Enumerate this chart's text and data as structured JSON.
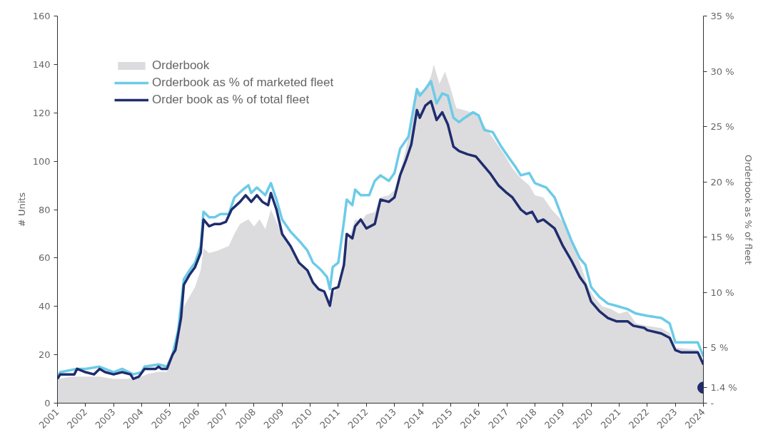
{
  "chart_data": {
    "type": "line",
    "ylabel": "# Units",
    "y2label": "Orderbook as % of fleet",
    "xlim": [
      2001,
      2024
    ],
    "xticks": [
      2001,
      2002,
      2003,
      2004,
      2005,
      2006,
      2007,
      2008,
      2009,
      2010,
      2011,
      2012,
      2013,
      2014,
      2015,
      2016,
      2017,
      2018,
      2019,
      2020,
      2021,
      2022,
      2023,
      2024
    ],
    "ylim": [
      0,
      160
    ],
    "yticks": [
      0,
      20,
      40,
      60,
      80,
      100,
      120,
      140,
      160
    ],
    "y2lim": [
      0,
      35
    ],
    "y2ticks": [
      {
        "value": 0,
        "label": "-"
      },
      {
        "value": 5,
        "label": "5 %"
      },
      {
        "value": 10,
        "label": "10 %"
      },
      {
        "value": 15,
        "label": "15 %"
      },
      {
        "value": 20,
        "label": "20 %"
      },
      {
        "value": 25,
        "label": "25 %"
      },
      {
        "value": 30,
        "label": "30 %"
      },
      {
        "value": 35,
        "label": "35 %"
      }
    ],
    "grid": false,
    "legend": "top left",
    "line_style": "solid",
    "series": [
      {
        "name": "Orderbook",
        "type": "area",
        "color": "#dcdcde",
        "x": [
          2001,
          2001.5,
          2002,
          2002.5,
          2003,
          2003.5,
          2004,
          2004.2,
          2004.6,
          2004.9,
          2005.1,
          2005.3,
          2005.5,
          2005.7,
          2005.9,
          2006.1,
          2006.2,
          2006.4,
          2006.7,
          2006.9,
          2007.1,
          2007.3,
          2007.5,
          2007.8,
          2008.0,
          2008.2,
          2008.4,
          2008.6,
          2008.8,
          2009.0,
          2009.3,
          2009.6,
          2009.9,
          2010.2,
          2010.5,
          2010.7,
          2010.8,
          2011.0,
          2011.3,
          2011.6,
          2011.8,
          2012.0,
          2012.3,
          2012.5,
          2012.8,
          2013.0,
          2013.3,
          2013.6,
          2013.8,
          2014.0,
          2014.3,
          2014.4,
          2014.6,
          2014.8,
          2015.0,
          2015.2,
          2015.5,
          2015.8,
          2016.0,
          2016.3,
          2016.6,
          2016.9,
          2017.2,
          2017.5,
          2017.8,
          2018.0,
          2018.3,
          2018.6,
          2019.0,
          2019.3,
          2019.6,
          2019.9,
          2020.1,
          2020.4,
          2020.7,
          2021.0,
          2021.3,
          2021.6,
          2022.0,
          2022.5,
          2022.8,
          2023.0,
          2023.8,
          2024.0
        ],
        "values": [
          10,
          11,
          11,
          11,
          10,
          10,
          11,
          12,
          13,
          13,
          20,
          30,
          40,
          44,
          48,
          55,
          64,
          62,
          63,
          64,
          65,
          70,
          74,
          76,
          73,
          76,
          72,
          80,
          75,
          70,
          64,
          59,
          54,
          49,
          45,
          42,
          45,
          48,
          65,
          76,
          75,
          78,
          79,
          85,
          86,
          88,
          100,
          115,
          130,
          128,
          135,
          140,
          132,
          137,
          130,
          122,
          121,
          120,
          118,
          113,
          108,
          103,
          97,
          93,
          90,
          86,
          85,
          80,
          75,
          68,
          58,
          48,
          44,
          40,
          39,
          37,
          38,
          33,
          32,
          31,
          29,
          23,
          22,
          17
        ]
      },
      {
        "name": "Orderbook as % of marketed fleet",
        "axis": "y2",
        "color": "#6ccbe8",
        "x": [
          2001.0,
          2001.1,
          2001.7,
          2002.0,
          2002.5,
          2003.0,
          2003.3,
          2003.7,
          2004.0,
          2004.1,
          2004.6,
          2004.9,
          2005.1,
          2005.3,
          2005.5,
          2005.7,
          2005.9,
          2006.1,
          2006.2,
          2006.4,
          2006.6,
          2006.8,
          2007.1,
          2007.3,
          2007.6,
          2007.8,
          2007.9,
          2008.1,
          2008.4,
          2008.6,
          2008.8,
          2009.0,
          2009.3,
          2009.6,
          2009.9,
          2010.1,
          2010.4,
          2010.6,
          2010.7,
          2010.8,
          2011.0,
          2011.2,
          2011.3,
          2011.5,
          2011.6,
          2011.8,
          2012.1,
          2012.3,
          2012.5,
          2012.8,
          2013.0,
          2013.2,
          2013.5,
          2013.8,
          2013.9,
          2014.1,
          2014.3,
          2014.5,
          2014.7,
          2014.9,
          2015.1,
          2015.3,
          2015.5,
          2015.8,
          2016.0,
          2016.2,
          2016.5,
          2016.8,
          2017.1,
          2017.3,
          2017.5,
          2017.8,
          2018.0,
          2018.4,
          2018.7,
          2019.0,
          2019.3,
          2019.6,
          2019.8,
          2020.0,
          2020.3,
          2020.6,
          2020.9,
          2021.3,
          2021.6,
          2022.0,
          2022.5,
          2022.8,
          2023.0,
          2023.8,
          2024.0
        ],
        "values": [
          2.4,
          2.8,
          3.1,
          3.1,
          3.3,
          2.8,
          3.1,
          2.6,
          2.8,
          3.3,
          3.5,
          3.3,
          4.4,
          6.6,
          11.2,
          12.0,
          12.7,
          14.2,
          17.3,
          16.8,
          16.8,
          17.1,
          17.1,
          18.6,
          19.3,
          19.7,
          19.0,
          19.5,
          18.8,
          19.9,
          18.4,
          16.6,
          15.5,
          14.7,
          13.8,
          12.7,
          12.0,
          11.4,
          10.3,
          12.3,
          12.7,
          16.4,
          18.4,
          17.9,
          19.3,
          18.8,
          18.8,
          20.1,
          20.6,
          20.1,
          20.8,
          23.0,
          24.1,
          28.4,
          27.8,
          28.4,
          29.1,
          27.1,
          28.0,
          27.8,
          25.8,
          25.4,
          25.8,
          26.3,
          26.0,
          24.7,
          24.5,
          23.2,
          22.1,
          21.4,
          20.6,
          20.8,
          19.9,
          19.5,
          18.6,
          16.6,
          14.7,
          13.1,
          12.5,
          10.5,
          9.6,
          9.0,
          8.8,
          8.5,
          8.1,
          7.9,
          7.7,
          7.2,
          5.5,
          5.5,
          4.2
        ]
      },
      {
        "name": "Order book as % of total fleet",
        "axis": "y2",
        "color": "#1f2d6e",
        "x": [
          2001.0,
          2001.1,
          2001.6,
          2001.7,
          2002.0,
          2002.3,
          2002.5,
          2002.7,
          2003.0,
          2003.3,
          2003.6,
          2003.7,
          2003.9,
          2004.1,
          2004.5,
          2004.6,
          2004.7,
          2004.9,
          2005.1,
          2005.2,
          2005.4,
          2005.5,
          2005.7,
          2005.9,
          2006.1,
          2006.2,
          2006.4,
          2006.6,
          2006.8,
          2007.0,
          2007.2,
          2007.5,
          2007.7,
          2007.9,
          2008.1,
          2008.3,
          2008.5,
          2008.6,
          2008.8,
          2009.0,
          2009.3,
          2009.6,
          2009.9,
          2010.1,
          2010.3,
          2010.5,
          2010.7,
          2010.8,
          2011.0,
          2011.2,
          2011.3,
          2011.5,
          2011.6,
          2011.8,
          2012.0,
          2012.3,
          2012.5,
          2012.8,
          2013.0,
          2013.2,
          2013.4,
          2013.6,
          2013.8,
          2013.9,
          2014.1,
          2014.3,
          2014.5,
          2014.7,
          2014.9,
          2015.1,
          2015.3,
          2015.6,
          2015.9,
          2016.1,
          2016.4,
          2016.7,
          2017.0,
          2017.2,
          2017.5,
          2017.7,
          2017.9,
          2018.1,
          2018.3,
          2018.5,
          2018.7,
          2019.0,
          2019.3,
          2019.6,
          2019.8,
          2020.0,
          2020.3,
          2020.6,
          2020.9,
          2021.3,
          2021.5,
          2021.9,
          2022.0,
          2022.5,
          2022.8,
          2023.0,
          2023.2,
          2023.8,
          2024.0
        ],
        "values": [
          2.2,
          2.6,
          2.6,
          3.1,
          2.8,
          2.6,
          3.1,
          2.8,
          2.6,
          2.8,
          2.6,
          2.2,
          2.4,
          3.1,
          3.1,
          3.3,
          3.1,
          3.1,
          4.4,
          4.8,
          7.7,
          10.7,
          11.6,
          12.3,
          13.6,
          16.6,
          16.0,
          16.2,
          16.2,
          16.4,
          17.5,
          18.2,
          18.8,
          18.2,
          18.8,
          18.2,
          17.9,
          19.0,
          17.5,
          15.3,
          14.2,
          12.7,
          12.0,
          10.9,
          10.3,
          10.1,
          8.8,
          10.3,
          10.5,
          12.5,
          15.3,
          14.9,
          16.0,
          16.6,
          15.8,
          16.2,
          18.4,
          18.2,
          18.6,
          20.6,
          21.9,
          23.4,
          26.5,
          25.8,
          26.9,
          27.3,
          25.6,
          26.3,
          25.2,
          23.2,
          22.8,
          22.5,
          22.3,
          21.7,
          20.8,
          19.7,
          19.0,
          18.6,
          17.5,
          17.1,
          17.3,
          16.4,
          16.6,
          16.2,
          15.8,
          14.2,
          12.9,
          11.4,
          10.7,
          9.2,
          8.3,
          7.7,
          7.4,
          7.4,
          7.0,
          6.8,
          6.6,
          6.3,
          5.9,
          4.8,
          4.6,
          4.6,
          3.5
        ]
      },
      {
        "type": "scatter",
        "axis": "y2",
        "marker": "circle",
        "color": "#1f2d6e",
        "x": [
          2024
        ],
        "values": [
          1.4
        ],
        "value_labels": [
          "1.4 %"
        ]
      }
    ]
  }
}
